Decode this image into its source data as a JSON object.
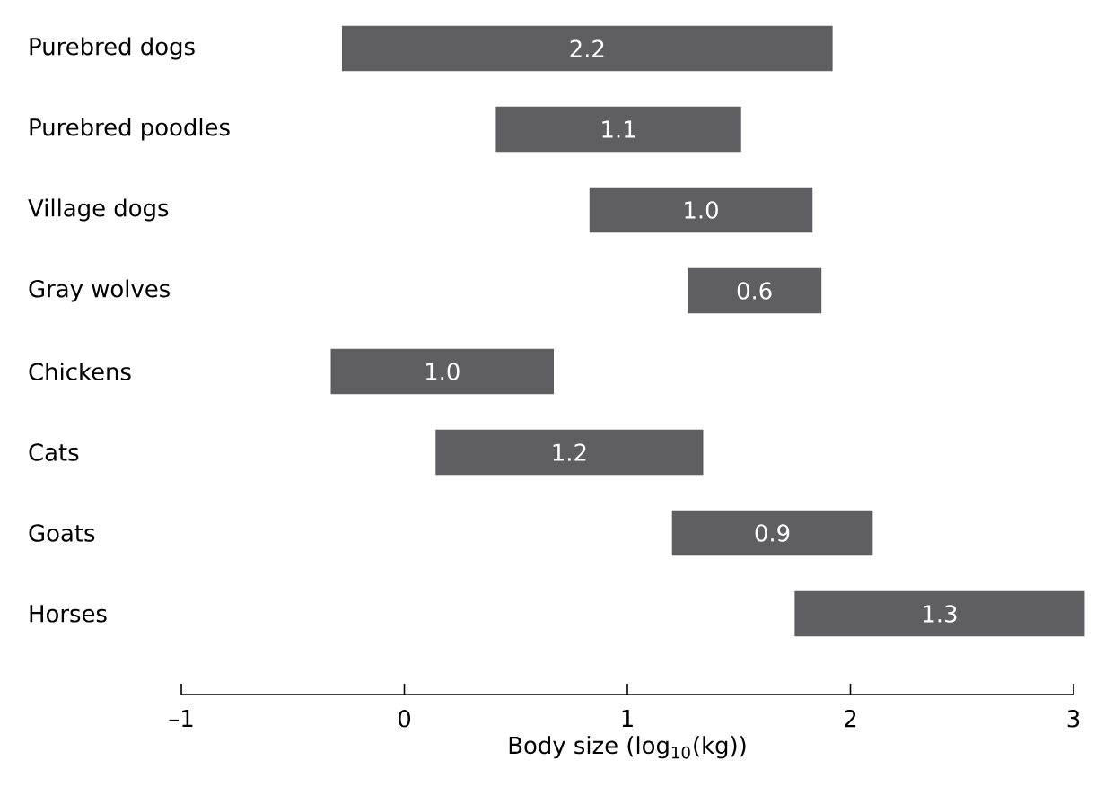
{
  "chart_data": {
    "type": "bar",
    "orientation": "horizontal",
    "xlabel": "Body size (log$_{10}$(kg))",
    "categories": [
      "Purebred dogs",
      "Purebred poodles",
      "Village dogs",
      "Gray wolves",
      "Chickens",
      "Cats",
      "Goats",
      "Horses"
    ],
    "base": [
      -0.28,
      0.41,
      0.83,
      1.27,
      -0.33,
      0.14,
      1.2,
      1.75
    ],
    "values": [
      2.2,
      1.1,
      1.0,
      0.6,
      1.0,
      1.2,
      0.9,
      1.3
    ],
    "color": "#5f5f61",
    "value_labels": [
      "2.2",
      "1.1",
      "1.0",
      "0.6",
      "1.0",
      "1.2",
      "0.9",
      "1.3"
    ],
    "xlim": [
      -1,
      3
    ],
    "xticks": [
      {
        "value": -1,
        "label": "–1"
      },
      0,
      1,
      2,
      3
    ],
    "grid": false
  }
}
